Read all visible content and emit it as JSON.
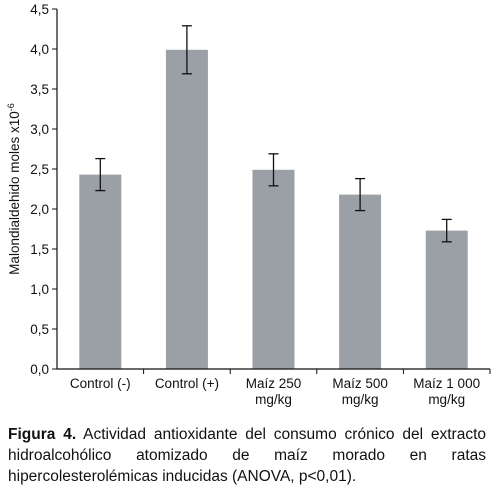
{
  "chart_data": {
    "type": "bar",
    "title": "",
    "xlabel": "",
    "ylabel": "Malondialdehido moles x10",
    "ylabel_sup": "-6",
    "ylim": [
      0,
      4.5
    ],
    "yticks": [
      "0,0",
      "0,5",
      "1,0",
      "1,5",
      "2,0",
      "2,5",
      "3,0",
      "3,5",
      "4,0",
      "4,5"
    ],
    "categories": [
      [
        "Control (-)"
      ],
      [
        "Control (+)"
      ],
      [
        "Maíz 250",
        "mg/kg"
      ],
      [
        "Maíz 500",
        "mg/kg"
      ],
      [
        "Maíz 1 000",
        "mg/kg"
      ]
    ],
    "values": [
      2.43,
      3.99,
      2.49,
      2.18,
      1.73
    ],
    "error": [
      0.2,
      0.3,
      0.2,
      0.2,
      0.14
    ],
    "bar_color": "#9aa0a6",
    "grid": false
  },
  "caption": {
    "label": "Figura 4.",
    "text": "Actividad antioxidante del consumo crónico del extracto hidroalcohólico atomizado de maíz morado en ratas hipercolesterolémicas inducidas (ANOVA, p<0,01)."
  }
}
